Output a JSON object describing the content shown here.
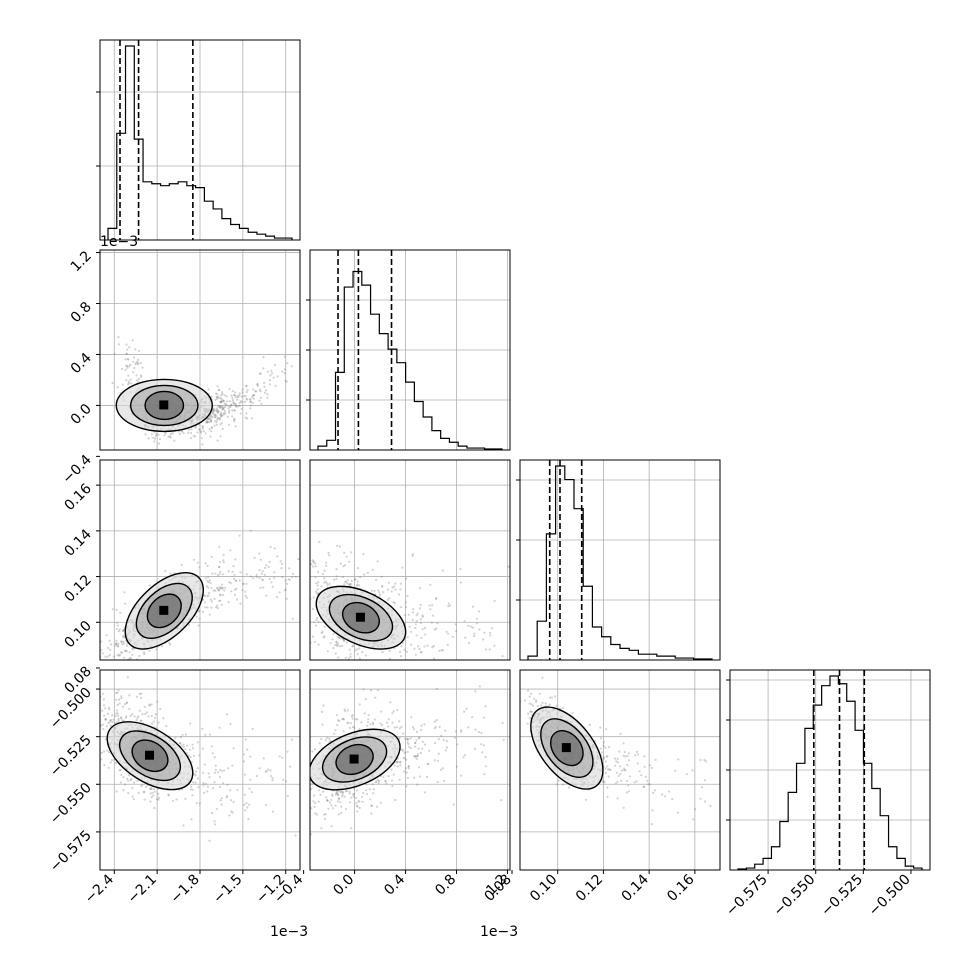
{
  "chart_data": {
    "type": "corner",
    "parameters": [
      {
        "ticks": [
          -2.4,
          -2.1,
          -1.8,
          -1.5,
          -1.2
        ],
        "tick_labels": [
          "−2.4",
          "−2.1",
          "−1.8",
          "−1.5",
          "−1.2"
        ],
        "offset_label": "1e−3",
        "range": [
          -2.5,
          -1.1
        ],
        "quantiles": [
          -2.36,
          -2.23,
          -1.85
        ]
      },
      {
        "ticks": [
          -0.4,
          0.0,
          0.4,
          0.8,
          1.2
        ],
        "tick_labels": [
          "−0.4",
          "0.0",
          "0.4",
          "0.8",
          "1.2"
        ],
        "offset_label": "1e−3",
        "range": [
          -0.35,
          1.22
        ],
        "quantiles": [
          -0.13,
          0.03,
          0.29
        ]
      },
      {
        "ticks": [
          0.08,
          0.1,
          0.12,
          0.14,
          0.16
        ],
        "tick_labels": [
          "0.08",
          "0.10",
          "0.12",
          "0.14",
          "0.16"
        ],
        "offset_label": "",
        "range": [
          0.0835,
          0.171
        ],
        "quantiles": [
          0.0965,
          0.101,
          0.1105
        ]
      },
      {
        "ticks": [
          -0.575,
          -0.55,
          -0.525,
          -0.5
        ],
        "tick_labels": [
          "−0.575",
          "−0.550",
          "−0.525",
          "−0.500"
        ],
        "offset_label": "",
        "range": [
          -0.595,
          -0.49
        ],
        "quantiles": [
          -0.551,
          -0.5375,
          -0.5245
        ]
      }
    ],
    "histograms": [
      [
        0.06,
        0.55,
        1.0,
        0.52,
        0.3,
        0.29,
        0.28,
        0.29,
        0.3,
        0.28,
        0.27,
        0.2,
        0.16,
        0.11,
        0.08,
        0.06,
        0.04,
        0.03,
        0.02,
        0.01,
        0.01
      ],
      [
        0.02,
        0.05,
        0.4,
        0.84,
        0.92,
        0.85,
        0.7,
        0.6,
        0.52,
        0.45,
        0.35,
        0.25,
        0.17,
        0.1,
        0.06,
        0.04,
        0.02,
        0.01,
        0.01,
        0.005,
        0.005
      ],
      [
        0.02,
        0.2,
        0.65,
        1.0,
        0.93,
        0.78,
        0.38,
        0.17,
        0.12,
        0.08,
        0.06,
        0.05,
        0.03,
        0.03,
        0.02,
        0.02,
        0.01,
        0.01,
        0.005,
        0.005
      ],
      [
        0.005,
        0.01,
        0.03,
        0.06,
        0.12,
        0.25,
        0.4,
        0.55,
        0.73,
        0.85,
        0.95,
        1.0,
        0.96,
        0.87,
        0.72,
        0.55,
        0.42,
        0.28,
        0.12,
        0.06,
        0.02,
        0.01
      ]
    ],
    "histogram_yticks": [
      [
        0.37,
        0.74
      ],
      [
        0.25,
        0.5,
        0.75
      ],
      [
        0.3,
        0.6,
        0.9
      ],
      [
        0.25,
        0.5,
        0.75,
        0.95
      ]
    ],
    "grid": true,
    "scatter_color": "#7f7f7f",
    "contour_color": "#000000",
    "quantile_style": "dashed"
  }
}
